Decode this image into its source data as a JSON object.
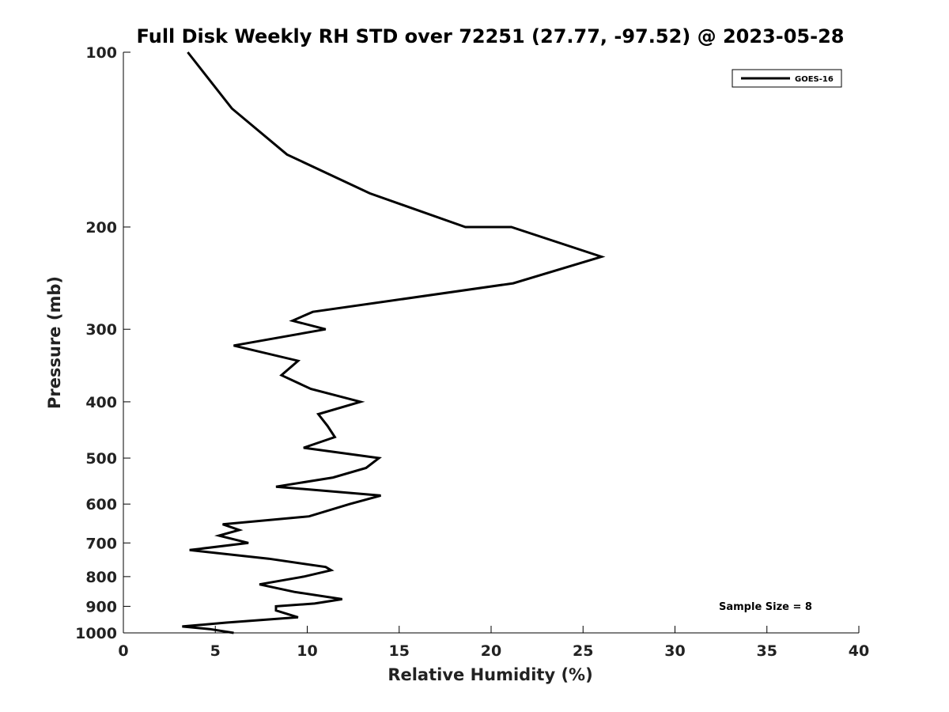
{
  "chart_data": {
    "type": "line",
    "title": "Full Disk Weekly RH STD over 72251 (27.77, -97.52) @ 2023-05-28",
    "xlabel": "Relative Humidity (%)",
    "ylabel": "Pressure (mb)",
    "xlim": [
      0,
      40
    ],
    "ylim": [
      100,
      1000
    ],
    "y_scale": "log",
    "y_inverted": true,
    "x_ticks": [
      0,
      5,
      10,
      15,
      20,
      25,
      30,
      35,
      40
    ],
    "y_ticks": [
      100,
      200,
      300,
      400,
      500,
      600,
      700,
      800,
      900,
      1000
    ],
    "grid": false,
    "legend_position": "top-right",
    "annotation": "Sample Size = 8",
    "series": [
      {
        "name": "GOES-16",
        "color": "#000000",
        "points": [
          [
            3.5,
            100
          ],
          [
            5.9,
            125
          ],
          [
            8.9,
            150
          ],
          [
            13.4,
            175
          ],
          [
            18.6,
            200
          ],
          [
            21.1,
            200
          ],
          [
            26.0,
            225
          ],
          [
            21.2,
            250
          ],
          [
            10.3,
            280
          ],
          [
            9.2,
            290
          ],
          [
            11.0,
            300
          ],
          [
            6.0,
            320
          ],
          [
            9.5,
            340
          ],
          [
            8.6,
            360
          ],
          [
            10.2,
            380
          ],
          [
            12.9,
            400
          ],
          [
            10.6,
            420
          ],
          [
            11.1,
            440
          ],
          [
            11.5,
            460
          ],
          [
            9.8,
            480
          ],
          [
            13.9,
            500
          ],
          [
            13.2,
            520
          ],
          [
            11.4,
            540
          ],
          [
            8.3,
            560
          ],
          [
            14.0,
            580
          ],
          [
            12.3,
            600
          ],
          [
            10.1,
            630
          ],
          [
            5.4,
            650
          ],
          [
            6.3,
            665
          ],
          [
            5.2,
            680
          ],
          [
            6.8,
            700
          ],
          [
            3.6,
            720
          ],
          [
            7.9,
            745
          ],
          [
            11.0,
            770
          ],
          [
            11.3,
            780
          ],
          [
            9.8,
            800
          ],
          [
            7.4,
            825
          ],
          [
            9.3,
            850
          ],
          [
            11.9,
            875
          ],
          [
            10.4,
            890
          ],
          [
            8.3,
            900
          ],
          [
            8.3,
            915
          ],
          [
            9.5,
            940
          ],
          [
            5.6,
            960
          ],
          [
            3.2,
            975
          ],
          [
            4.7,
            985
          ],
          [
            6.0,
            1000
          ]
        ]
      }
    ]
  }
}
